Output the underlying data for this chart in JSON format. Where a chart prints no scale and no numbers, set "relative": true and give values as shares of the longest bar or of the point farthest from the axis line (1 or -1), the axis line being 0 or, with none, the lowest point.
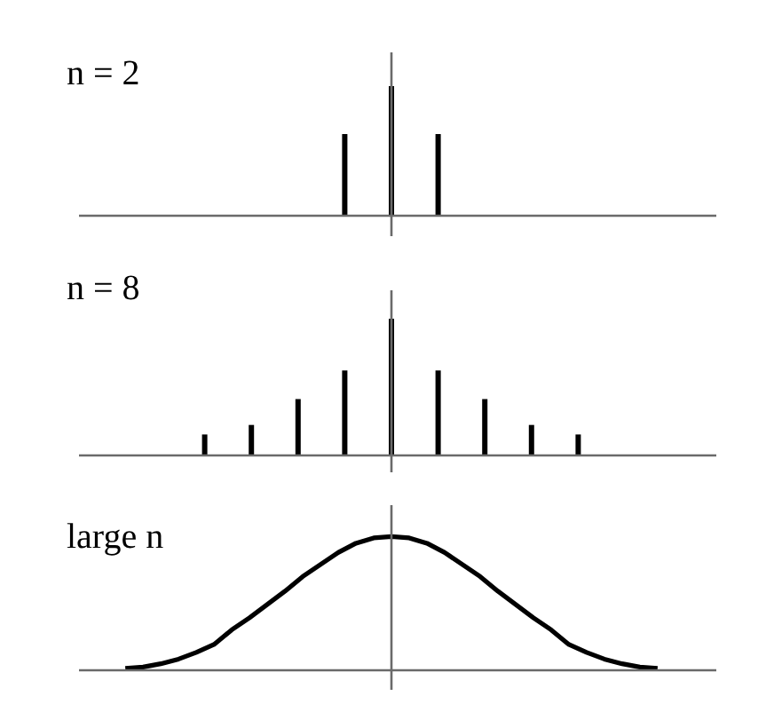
{
  "chart_data": [
    {
      "type": "bar",
      "title": "n = 2",
      "categories": [
        null,
        null,
        null
      ],
      "values": [
        0.63,
        1,
        0.63
      ],
      "relative": true,
      "color": "#000000"
    },
    {
      "type": "bar",
      "title": "n = 8",
      "categories": [
        null,
        null,
        null,
        null,
        null,
        null,
        null,
        null,
        null
      ],
      "values": [
        0.15,
        0.22,
        0.41,
        0.62,
        1,
        0.62,
        0.41,
        0.22,
        0.15
      ],
      "relative": true,
      "color": "#000000"
    },
    {
      "type": "line",
      "title": "large n",
      "categories": [
        null,
        null,
        null,
        null,
        null,
        null,
        null,
        null,
        null,
        null,
        null,
        null,
        null,
        null,
        null,
        null,
        null,
        null,
        null,
        null,
        null,
        null,
        null,
        null,
        null,
        null,
        null,
        null,
        null,
        null,
        null
      ],
      "values": [
        0.01,
        0.02,
        0.045,
        0.08,
        0.13,
        0.19,
        0.3,
        0.39,
        0.49,
        0.59,
        0.7,
        0.79,
        0.88,
        0.95,
        0.99,
        1,
        0.99,
        0.95,
        0.88,
        0.79,
        0.7,
        0.59,
        0.49,
        0.39,
        0.3,
        0.19,
        0.13,
        0.08,
        0.045,
        0.02,
        0.01
      ],
      "relative": true,
      "color": "#000000"
    }
  ]
}
